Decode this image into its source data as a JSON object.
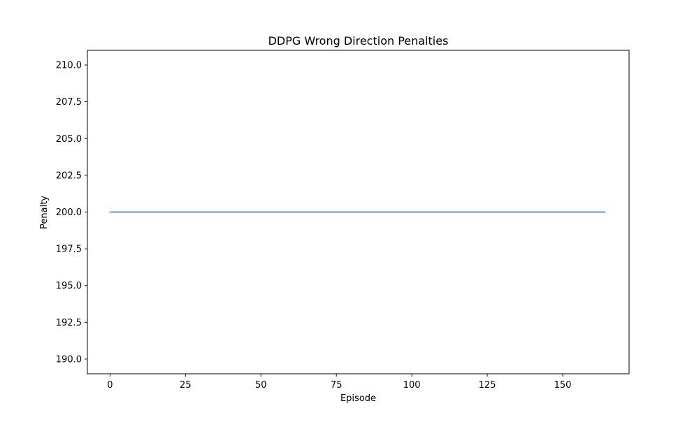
{
  "chart_data": {
    "type": "line",
    "title": "DDPG Wrong Direction Penalties",
    "xlabel": "Episode",
    "ylabel": "Penalty",
    "xlim": [
      -7.5,
      172
    ],
    "ylim": [
      189,
      211
    ],
    "xticks": [
      0,
      25,
      50,
      75,
      100,
      125,
      150
    ],
    "xtick_labels": [
      "0",
      "25",
      "50",
      "75",
      "100",
      "125",
      "150"
    ],
    "yticks": [
      190,
      192.5,
      195,
      197.5,
      200,
      202.5,
      205,
      207.5,
      210
    ],
    "ytick_labels": [
      "190.0",
      "192.5",
      "195.0",
      "197.5",
      "200.0",
      "202.5",
      "205.0",
      "207.5",
      "210.0"
    ],
    "grid": false,
    "legend": false,
    "series": [
      {
        "color": "#1f77b4",
        "x": [
          0,
          164
        ],
        "y": [
          200,
          200
        ]
      }
    ]
  }
}
